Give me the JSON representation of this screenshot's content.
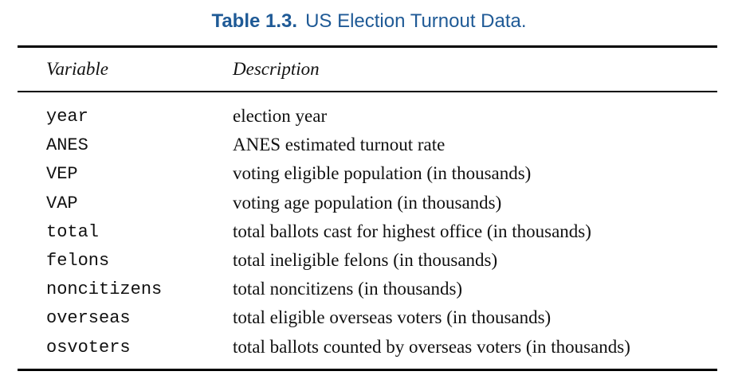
{
  "caption": {
    "label": "Table 1.3.",
    "title": "US Election Turnout Data."
  },
  "table": {
    "headers": {
      "variable": "Variable",
      "description": "Description"
    },
    "rows": [
      {
        "variable": "year",
        "description": "election year"
      },
      {
        "variable": "ANES",
        "description": "ANES estimated turnout rate"
      },
      {
        "variable": "VEP",
        "description": "voting eligible population (in thousands)"
      },
      {
        "variable": "VAP",
        "description": "voting age population (in thousands)"
      },
      {
        "variable": "total",
        "description": "total ballots cast for highest office (in thousands)"
      },
      {
        "variable": "felons",
        "description": "total ineligible felons (in thousands)"
      },
      {
        "variable": "noncitizens",
        "description": "total noncitizens (in thousands)"
      },
      {
        "variable": "overseas",
        "description": "total eligible overseas voters (in thousands)"
      },
      {
        "variable": "osvoters",
        "description": "total ballots counted by overseas voters (in thousands)"
      }
    ]
  },
  "colors": {
    "caption": "#1f5a96",
    "text": "#111111",
    "rules": "#000000"
  }
}
